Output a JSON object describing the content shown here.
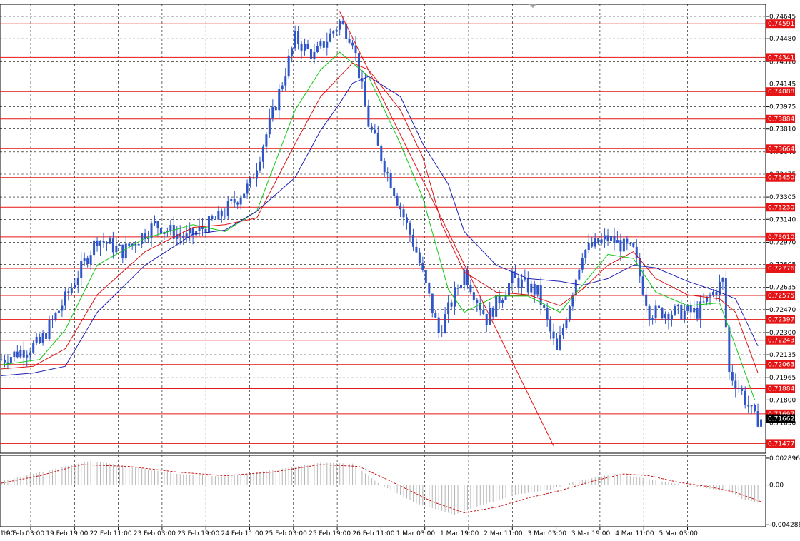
{
  "colors": {
    "background": "#ffffff",
    "frame": "#000000",
    "grid": "#000000",
    "candle": "#2f55c8",
    "ma_fast": "#14c814",
    "ma_mid": "#dc1414",
    "ma_slow": "#1e1eb4",
    "trendline": "#e61414",
    "level_line": "#e61414",
    "level_label_bg": "#e61414",
    "level_label_text": "#ffffff",
    "current_price_bg": "#000000",
    "oscillator_bar": "#b4b4b4",
    "oscillator_signal": "#c81414"
  },
  "chart_data": {
    "type": "line",
    "instrument_window": "price",
    "ylim": [
      0.71405,
      0.74735
    ],
    "y_ticks": [
      "0.74645",
      "0.74480",
      "0.74310",
      "0.74145",
      "0.73975",
      "0.73810",
      "0.73640",
      "0.73475",
      "0.73305",
      "0.73140",
      "0.72970",
      "0.72805",
      "0.72635",
      "0.72470",
      "0.72300",
      "0.72135",
      "0.71965",
      "0.71800",
      "0.71630"
    ],
    "time_labels": [
      "19 Feb 03:00",
      "19 Feb 19:00",
      "22 Feb 11:00",
      "23 Feb 03:00",
      "23 Feb 19:00",
      "24 Feb 11:00",
      "25 Feb 03:00",
      "25 Feb 19:00",
      "26 Feb 11:00",
      "1 Mar 03:00",
      "1 Mar 19:00",
      "2 Mar 11:00",
      "3 Mar 03:00",
      "3 Mar 19:00",
      "4 Mar 11:00",
      "5 Mar 03:00"
    ],
    "first_time_label_fragment": "1:00",
    "horizontal_levels": [
      "0.74591",
      "0.74341",
      "0.74088",
      "0.73884",
      "0.73664",
      "0.73450",
      "0.73230",
      "0.73010",
      "0.72776",
      "0.72575",
      "0.72397",
      "0.72243",
      "0.72063",
      "0.71884",
      "0.71697",
      "0.71477"
    ],
    "current_price": "0.71662",
    "trendline": {
      "from": {
        "bar": 106,
        "price": 0.7468
      },
      "to": {
        "bar": 173,
        "price": 0.7146
      }
    },
    "bars_count": 239,
    "price_path": [
      [
        0,
        0.721
      ],
      [
        12,
        0.7222
      ],
      [
        20,
        0.7255
      ],
      [
        30,
        0.73
      ],
      [
        38,
        0.729
      ],
      [
        48,
        0.731
      ],
      [
        58,
        0.73
      ],
      [
        68,
        0.7315
      ],
      [
        78,
        0.734
      ],
      [
        85,
        0.7392
      ],
      [
        92,
        0.7448
      ],
      [
        98,
        0.7435
      ],
      [
        106,
        0.746
      ],
      [
        110,
        0.7448
      ],
      [
        115,
        0.7385
      ],
      [
        122,
        0.7342
      ],
      [
        130,
        0.729
      ],
      [
        137,
        0.723
      ],
      [
        145,
        0.7275
      ],
      [
        152,
        0.724
      ],
      [
        160,
        0.727
      ],
      [
        168,
        0.726
      ],
      [
        174,
        0.7215
      ],
      [
        182,
        0.729
      ],
      [
        190,
        0.73
      ],
      [
        198,
        0.729
      ],
      [
        203,
        0.7245
      ],
      [
        210,
        0.7245
      ],
      [
        218,
        0.7245
      ],
      [
        226,
        0.7268
      ],
      [
        228,
        0.72
      ],
      [
        231,
        0.719
      ],
      [
        236,
        0.7166
      ],
      [
        238,
        0.7166
      ]
    ],
    "series": [
      {
        "key": "ma_fast",
        "points": [
          [
            0,
            0.7206
          ],
          [
            12,
            0.721
          ],
          [
            20,
            0.7232
          ],
          [
            30,
            0.728
          ],
          [
            45,
            0.73
          ],
          [
            60,
            0.731
          ],
          [
            70,
            0.7305
          ],
          [
            80,
            0.732
          ],
          [
            92,
            0.7395
          ],
          [
            100,
            0.7425
          ],
          [
            106,
            0.7438
          ],
          [
            110,
            0.743
          ],
          [
            115,
            0.742
          ],
          [
            125,
            0.737
          ],
          [
            132,
            0.733
          ],
          [
            140,
            0.7262
          ],
          [
            145,
            0.7245
          ],
          [
            155,
            0.7257
          ],
          [
            165,
            0.7257
          ],
          [
            175,
            0.7245
          ],
          [
            182,
            0.7265
          ],
          [
            190,
            0.7288
          ],
          [
            198,
            0.7285
          ],
          [
            205,
            0.726
          ],
          [
            215,
            0.725
          ],
          [
            225,
            0.7252
          ],
          [
            230,
            0.722
          ],
          [
            236,
            0.718
          ]
        ]
      },
      {
        "key": "ma_mid",
        "points": [
          [
            0,
            0.7203
          ],
          [
            10,
            0.7205
          ],
          [
            20,
            0.7218
          ],
          [
            30,
            0.7258
          ],
          [
            45,
            0.729
          ],
          [
            60,
            0.7308
          ],
          [
            70,
            0.731
          ],
          [
            80,
            0.7315
          ],
          [
            92,
            0.737
          ],
          [
            100,
            0.7405
          ],
          [
            106,
            0.742
          ],
          [
            110,
            0.743
          ],
          [
            115,
            0.7425
          ],
          [
            125,
            0.7395
          ],
          [
            132,
            0.736
          ],
          [
            138,
            0.731
          ],
          [
            145,
            0.7275
          ],
          [
            155,
            0.726
          ],
          [
            165,
            0.7258
          ],
          [
            175,
            0.725
          ],
          [
            182,
            0.7262
          ],
          [
            190,
            0.728
          ],
          [
            198,
            0.729
          ],
          [
            205,
            0.727
          ],
          [
            215,
            0.7258
          ],
          [
            225,
            0.7255
          ],
          [
            230,
            0.7245
          ],
          [
            237,
            0.72
          ]
        ]
      },
      {
        "key": "ma_slow",
        "points": [
          [
            0,
            0.7198
          ],
          [
            10,
            0.72
          ],
          [
            20,
            0.7205
          ],
          [
            30,
            0.7245
          ],
          [
            45,
            0.728
          ],
          [
            60,
            0.7303
          ],
          [
            70,
            0.7306
          ],
          [
            80,
            0.732
          ],
          [
            92,
            0.7345
          ],
          [
            100,
            0.738
          ],
          [
            106,
            0.74
          ],
          [
            110,
            0.7415
          ],
          [
            115,
            0.742
          ],
          [
            125,
            0.7405
          ],
          [
            132,
            0.737
          ],
          [
            140,
            0.734
          ],
          [
            145,
            0.7305
          ],
          [
            155,
            0.728
          ],
          [
            165,
            0.727
          ],
          [
            175,
            0.7268
          ],
          [
            182,
            0.7265
          ],
          [
            190,
            0.727
          ],
          [
            198,
            0.728
          ],
          [
            205,
            0.7278
          ],
          [
            215,
            0.7268
          ],
          [
            225,
            0.726
          ],
          [
            230,
            0.7255
          ],
          [
            237,
            0.722
          ]
        ]
      }
    ],
    "oscillator": {
      "ylim": [
        -0.0045,
        0.0032
      ],
      "y_ticks": [
        "0.002896",
        "0.00",
        "-0.004286"
      ],
      "histogram_path": [
        [
          0,
          0.0004
        ],
        [
          10,
          0.0012
        ],
        [
          20,
          0.002
        ],
        [
          28,
          0.0026
        ],
        [
          40,
          0.002
        ],
        [
          55,
          0.0012
        ],
        [
          70,
          0.0009
        ],
        [
          85,
          0.0016
        ],
        [
          100,
          0.0024
        ],
        [
          110,
          0.0023
        ],
        [
          118,
          0.0002
        ],
        [
          130,
          -0.002
        ],
        [
          142,
          -0.0032
        ],
        [
          150,
          -0.0022
        ],
        [
          162,
          -0.001
        ],
        [
          172,
          -0.0005
        ],
        [
          180,
          0.0004
        ],
        [
          192,
          0.0012
        ],
        [
          200,
          0.0008
        ],
        [
          210,
          0.0002
        ],
        [
          220,
          -0.0003
        ],
        [
          228,
          -0.0007
        ],
        [
          232,
          -0.0015
        ],
        [
          238,
          -0.002
        ]
      ],
      "signal_path": [
        [
          0,
          0.0002
        ],
        [
          12,
          0.001
        ],
        [
          25,
          0.0022
        ],
        [
          40,
          0.002
        ],
        [
          55,
          0.0014
        ],
        [
          70,
          0.001
        ],
        [
          85,
          0.0014
        ],
        [
          100,
          0.0022
        ],
        [
          112,
          0.002
        ],
        [
          122,
          0.0004
        ],
        [
          135,
          -0.0018
        ],
        [
          145,
          -0.003
        ],
        [
          155,
          -0.0024
        ],
        [
          165,
          -0.0014
        ],
        [
          175,
          -0.0006
        ],
        [
          185,
          0.0004
        ],
        [
          195,
          0.0012
        ],
        [
          203,
          0.001
        ],
        [
          212,
          0.0003
        ],
        [
          222,
          -0.0002
        ],
        [
          230,
          -0.0008
        ],
        [
          238,
          -0.0018
        ]
      ]
    }
  }
}
